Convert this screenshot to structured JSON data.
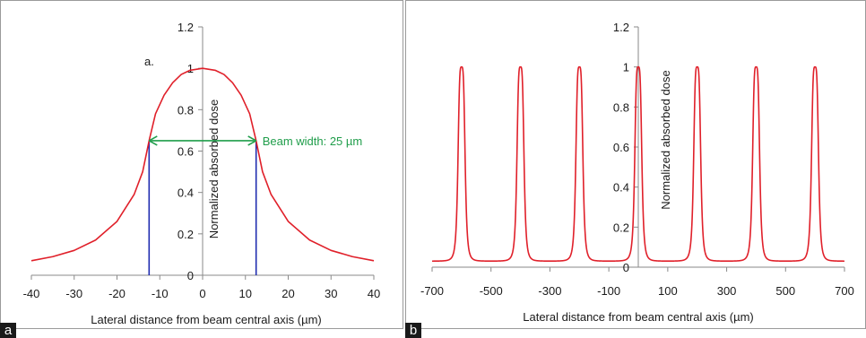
{
  "colors": {
    "curve": "#e0202a",
    "beam_lines": "#1f2cb0",
    "arrow": "#1f9d4a",
    "axes": "#8a8a8a"
  },
  "chart_data": [
    {
      "panel_label": "a",
      "type": "line",
      "title": "",
      "xlabel": "Lateral distance from beam central axis (µm)",
      "ylabel": "Normalized absorbed dose",
      "xlim": [
        -40,
        40
      ],
      "ylim": [
        0,
        1.2
      ],
      "x_ticks": [
        -40,
        -30,
        -20,
        -10,
        0,
        10,
        20,
        30,
        40
      ],
      "y_ticks": [
        0,
        0.2,
        0.4,
        0.6,
        0.8,
        1,
        1.2
      ],
      "x_tick_labels": [
        "-40",
        "-30",
        "-20",
        "-10",
        "0",
        "10",
        "20",
        "30",
        "40"
      ],
      "y_tick_labels": [
        "0",
        "0.2",
        "0.4",
        "0.6",
        "0.8",
        "1",
        "1.2"
      ],
      "grid": false,
      "series": [
        {
          "x": [
            -40,
            -35,
            -30,
            -25,
            -20,
            -16,
            -14,
            -12.5,
            -11,
            -9,
            -7,
            -5,
            -3,
            0,
            3,
            5,
            7,
            9,
            11,
            12.5,
            14,
            16,
            20,
            25,
            30,
            35,
            40
          ],
          "y": [
            0.07,
            0.09,
            0.12,
            0.17,
            0.26,
            0.39,
            0.5,
            0.65,
            0.78,
            0.87,
            0.93,
            0.97,
            0.99,
            1.0,
            0.99,
            0.97,
            0.93,
            0.87,
            0.78,
            0.65,
            0.5,
            0.39,
            0.26,
            0.17,
            0.12,
            0.09,
            0.07
          ]
        }
      ],
      "vertical_lines_x": [
        -12.5,
        12.5
      ],
      "vertical_line_top_y": 0.65,
      "beam_width_arrow": {
        "x_from": -12.5,
        "x_to": 12.5,
        "y": 0.65,
        "label": "Beam width: 25 µm"
      },
      "annotations": [
        "a."
      ]
    },
    {
      "panel_label": "b",
      "type": "line",
      "title": "",
      "xlabel": "Lateral distance from beam central axis (µm)",
      "ylabel": "Normalized absorbed dose",
      "xlim": [
        -700,
        700
      ],
      "ylim": [
        0,
        1.2
      ],
      "x_ticks": [
        -700,
        -500,
        -300,
        -100,
        100,
        300,
        500,
        700
      ],
      "y_ticks": [
        0,
        0.2,
        0.4,
        0.6,
        0.8,
        1,
        1.2
      ],
      "x_tick_labels": [
        "-700",
        "-500",
        "-300",
        "-100",
        "100",
        "300",
        "500",
        "700"
      ],
      "y_tick_labels": [
        "0",
        "0.2",
        "0.4",
        "0.6",
        "0.8",
        "1",
        "1.2"
      ],
      "grid": false,
      "peak_centers": [
        -600,
        -400,
        -200,
        0,
        200,
        400,
        600
      ],
      "peak_max": 1.0,
      "valley_min": 0.03,
      "beam_width": 25
    }
  ]
}
